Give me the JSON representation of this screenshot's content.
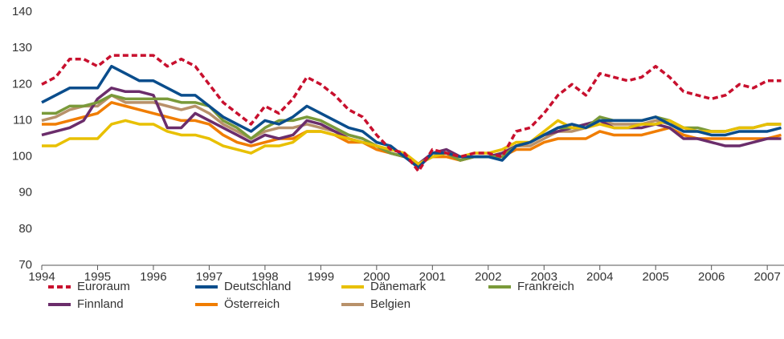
{
  "chart_data": {
    "type": "line",
    "x": [
      1994,
      1994.25,
      1994.5,
      1994.75,
      1995,
      1995.25,
      1995.5,
      1995.75,
      1996,
      1996.25,
      1996.5,
      1996.75,
      1997,
      1997.25,
      1997.5,
      1997.75,
      1998,
      1998.25,
      1998.5,
      1998.75,
      1999,
      1999.25,
      1999.5,
      1999.75,
      2000,
      2000.25,
      2000.5,
      2000.75,
      2001,
      2001.25,
      2001.5,
      2001.75,
      2002,
      2002.25,
      2002.5,
      2002.75,
      2003,
      2003.25,
      2003.5,
      2003.75,
      2004,
      2004.25,
      2004.5,
      2004.75,
      2005,
      2005.25,
      2005.5,
      2005.75,
      2006,
      2006.25,
      2006.5,
      2006.75,
      2007,
      2007.25
    ],
    "xlim": [
      1994,
      2007.3
    ],
    "xticks": [
      1994,
      1995,
      1996,
      1997,
      1998,
      1999,
      2000,
      2001,
      2002,
      2003,
      2004,
      2005,
      2006,
      2007
    ],
    "ylim": [
      70,
      140
    ],
    "yticks": [
      70,
      80,
      90,
      100,
      110,
      120,
      130,
      140
    ],
    "grid": false,
    "legend": "bottom",
    "series": [
      {
        "name": "Euroraum",
        "color": "#c8102e",
        "dashed": true,
        "values": [
          120,
          122,
          127,
          127,
          125,
          128,
          128,
          128,
          128,
          125,
          127,
          125,
          120,
          115,
          112,
          109,
          114,
          112,
          116,
          122,
          120,
          117,
          113,
          111,
          106,
          102,
          101,
          96,
          102,
          101,
          100,
          101,
          101,
          100,
          107,
          108,
          112,
          117,
          120,
          117,
          123,
          122,
          121,
          122,
          125,
          122,
          118,
          117,
          116,
          117,
          120,
          119,
          121,
          121
        ]
      },
      {
        "name": "Deutschland",
        "color": "#0a4d8c",
        "dashed": false,
        "values": [
          115,
          117,
          119,
          119,
          119,
          125,
          123,
          121,
          121,
          119,
          117,
          117,
          114,
          111,
          109,
          107,
          110,
          109,
          111,
          114,
          112,
          110,
          108,
          107,
          104,
          103,
          100,
          97,
          101,
          101,
          100,
          100,
          100,
          99,
          103,
          104,
          106,
          108,
          109,
          108,
          110,
          110,
          110,
          110,
          111,
          109,
          107,
          107,
          106,
          106,
          107,
          107,
          107,
          108
        ]
      },
      {
        "name": "Dänemark",
        "color": "#e8c000",
        "dashed": false,
        "values": [
          103,
          103,
          105,
          105,
          105,
          109,
          110,
          109,
          109,
          107,
          106,
          106,
          105,
          103,
          102,
          101,
          103,
          103,
          104,
          107,
          107,
          106,
          105,
          104,
          103,
          102,
          101,
          98,
          100,
          101,
          100,
          101,
          101,
          102,
          104,
          104,
          107,
          110,
          108,
          108,
          109,
          108,
          108,
          109,
          109,
          110,
          108,
          107,
          107,
          107,
          108,
          108,
          109,
          109
        ]
      },
      {
        "name": "Frankreich",
        "color": "#7a9a3a",
        "dashed": false,
        "values": [
          112,
          112,
          114,
          114,
          115,
          117,
          116,
          116,
          116,
          116,
          115,
          115,
          114,
          110,
          108,
          105,
          108,
          110,
          110,
          111,
          110,
          108,
          106,
          105,
          103,
          101,
          100,
          98,
          100,
          101,
          99,
          100,
          100,
          100,
          103,
          104,
          106,
          108,
          108,
          108,
          111,
          110,
          110,
          110,
          111,
          110,
          108,
          108,
          107,
          107,
          108,
          108,
          109,
          109
        ]
      },
      {
        "name": "Finnland",
        "color": "#6b2d6b",
        "dashed": false,
        "values": [
          106,
          107,
          108,
          110,
          116,
          119,
          118,
          118,
          117,
          108,
          108,
          112,
          110,
          108,
          106,
          104,
          106,
          105,
          106,
          110,
          109,
          107,
          105,
          104,
          103,
          101,
          100,
          98,
          101,
          102,
          100,
          100,
          100,
          101,
          103,
          104,
          106,
          107,
          108,
          109,
          110,
          108,
          108,
          108,
          109,
          108,
          105,
          105,
          104,
          103,
          103,
          104,
          105,
          105
        ]
      },
      {
        "name": "Österreich",
        "color": "#f07d00",
        "dashed": false,
        "values": [
          109,
          109,
          110,
          111,
          112,
          115,
          114,
          113,
          112,
          111,
          110,
          110,
          109,
          106,
          104,
          103,
          104,
          105,
          105,
          107,
          107,
          106,
          104,
          104,
          102,
          101,
          100,
          98,
          100,
          100,
          99,
          100,
          100,
          100,
          102,
          102,
          104,
          105,
          105,
          105,
          107,
          106,
          106,
          106,
          107,
          108,
          106,
          105,
          105,
          105,
          105,
          105,
          105,
          106
        ]
      },
      {
        "name": "Belgien",
        "color": "#b8916a",
        "dashed": false,
        "values": [
          110,
          111,
          113,
          114,
          114,
          117,
          115,
          115,
          115,
          114,
          113,
          114,
          112,
          109,
          107,
          105,
          107,
          108,
          108,
          109,
          108,
          107,
          106,
          105,
          103,
          101,
          100,
          98,
          100,
          101,
          99,
          100,
          100,
          101,
          103,
          103,
          105,
          107,
          107,
          108,
          110,
          109,
          109,
          109,
          110,
          109,
          108,
          107,
          107,
          107,
          108,
          108,
          109,
          109
        ]
      }
    ]
  }
}
